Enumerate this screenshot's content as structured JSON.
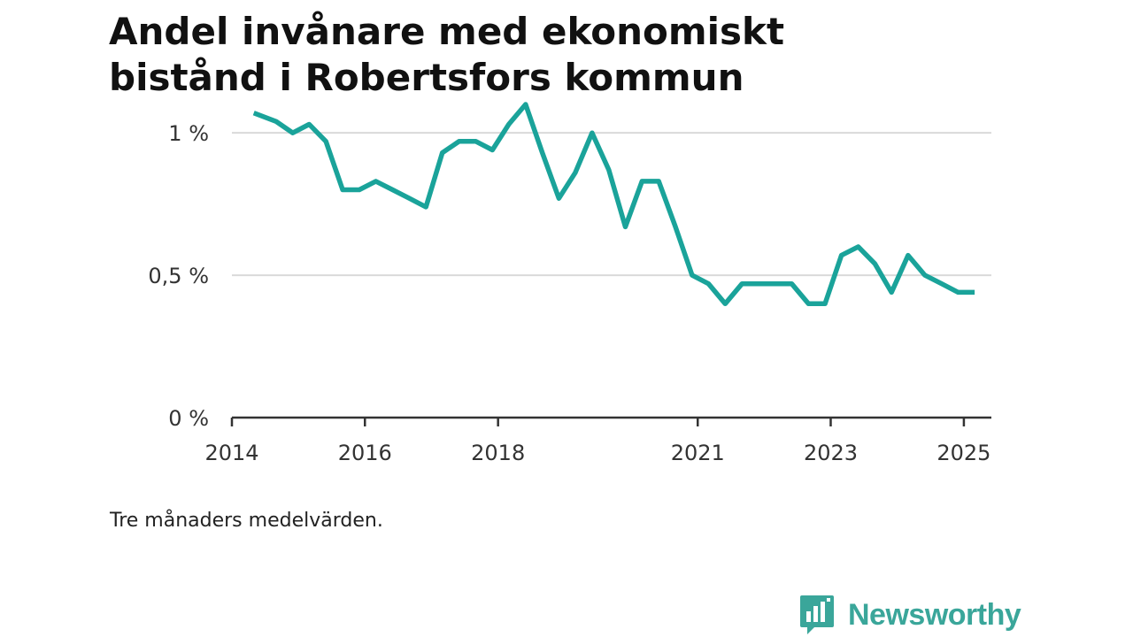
{
  "header": {
    "title_lines": [
      "Andel invånare med ekonomiskt",
      "bistånd i Robertsfors kommun"
    ]
  },
  "footer": {
    "note": "Tre månaders medelvärden.",
    "brand": "Newsworthy",
    "brand_icon": "bar-chart-speech-bubble-icon"
  },
  "colors": {
    "line": "#1aa39a",
    "grid": "#d9d9d9",
    "axis": "#333333",
    "brand": "#3aa69a"
  },
  "chart_data": {
    "type": "line",
    "title": "",
    "xlabel": "",
    "ylabel": "",
    "grid": true,
    "xlim": [
      "2014-01-01",
      "2025-06-01"
    ],
    "ylim": [
      0,
      1.1
    ],
    "x_ticks": [
      {
        "date": "2014-01-01",
        "label": "2014"
      },
      {
        "date": "2016-01-01",
        "label": "2016"
      },
      {
        "date": "2018-01-01",
        "label": "2018"
      },
      {
        "date": "2021-01-01",
        "label": "2021"
      },
      {
        "date": "2023-01-01",
        "label": "2023"
      },
      {
        "date": "2025-01-01",
        "label": "2025"
      }
    ],
    "y_ticks": [
      {
        "value": 0,
        "label": "0 %"
      },
      {
        "value": 0.5,
        "label": "0,5 %"
      },
      {
        "value": 1,
        "label": "1 %"
      }
    ],
    "series": [
      {
        "points": [
          [
            "2014-05-01",
            1.07
          ],
          [
            "2014-09-01",
            1.04
          ],
          [
            "2014-12-01",
            1.0
          ],
          [
            "2015-03-01",
            1.03
          ],
          [
            "2015-06-01",
            0.97
          ],
          [
            "2015-09-01",
            0.8
          ],
          [
            "2015-12-01",
            0.8
          ],
          [
            "2016-03-01",
            0.83
          ],
          [
            "2016-06-01",
            0.8
          ],
          [
            "2016-09-01",
            0.77
          ],
          [
            "2016-12-01",
            0.74
          ],
          [
            "2017-03-01",
            0.93
          ],
          [
            "2017-06-01",
            0.97
          ],
          [
            "2017-09-01",
            0.97
          ],
          [
            "2017-12-01",
            0.94
          ],
          [
            "2018-03-01",
            1.03
          ],
          [
            "2018-06-01",
            1.1
          ],
          [
            "2018-09-01",
            0.93
          ],
          [
            "2018-12-01",
            0.77
          ],
          [
            "2019-03-01",
            0.86
          ],
          [
            "2019-06-01",
            1.0
          ],
          [
            "2019-09-01",
            0.87
          ],
          [
            "2019-12-01",
            0.67
          ],
          [
            "2020-03-01",
            0.83
          ],
          [
            "2020-06-01",
            0.83
          ],
          [
            "2020-09-01",
            0.67
          ],
          [
            "2020-12-01",
            0.5
          ],
          [
            "2021-03-01",
            0.47
          ],
          [
            "2021-06-01",
            0.4
          ],
          [
            "2021-09-01",
            0.47
          ],
          [
            "2021-12-01",
            0.47
          ],
          [
            "2022-03-01",
            0.47
          ],
          [
            "2022-06-01",
            0.47
          ],
          [
            "2022-09-01",
            0.4
          ],
          [
            "2022-12-01",
            0.4
          ],
          [
            "2023-03-01",
            0.57
          ],
          [
            "2023-06-01",
            0.6
          ],
          [
            "2023-09-01",
            0.54
          ],
          [
            "2023-12-01",
            0.44
          ],
          [
            "2024-03-01",
            0.57
          ],
          [
            "2024-06-01",
            0.5
          ],
          [
            "2024-09-01",
            0.47
          ],
          [
            "2024-12-01",
            0.44
          ],
          [
            "2025-03-01",
            0.44
          ]
        ]
      }
    ]
  }
}
